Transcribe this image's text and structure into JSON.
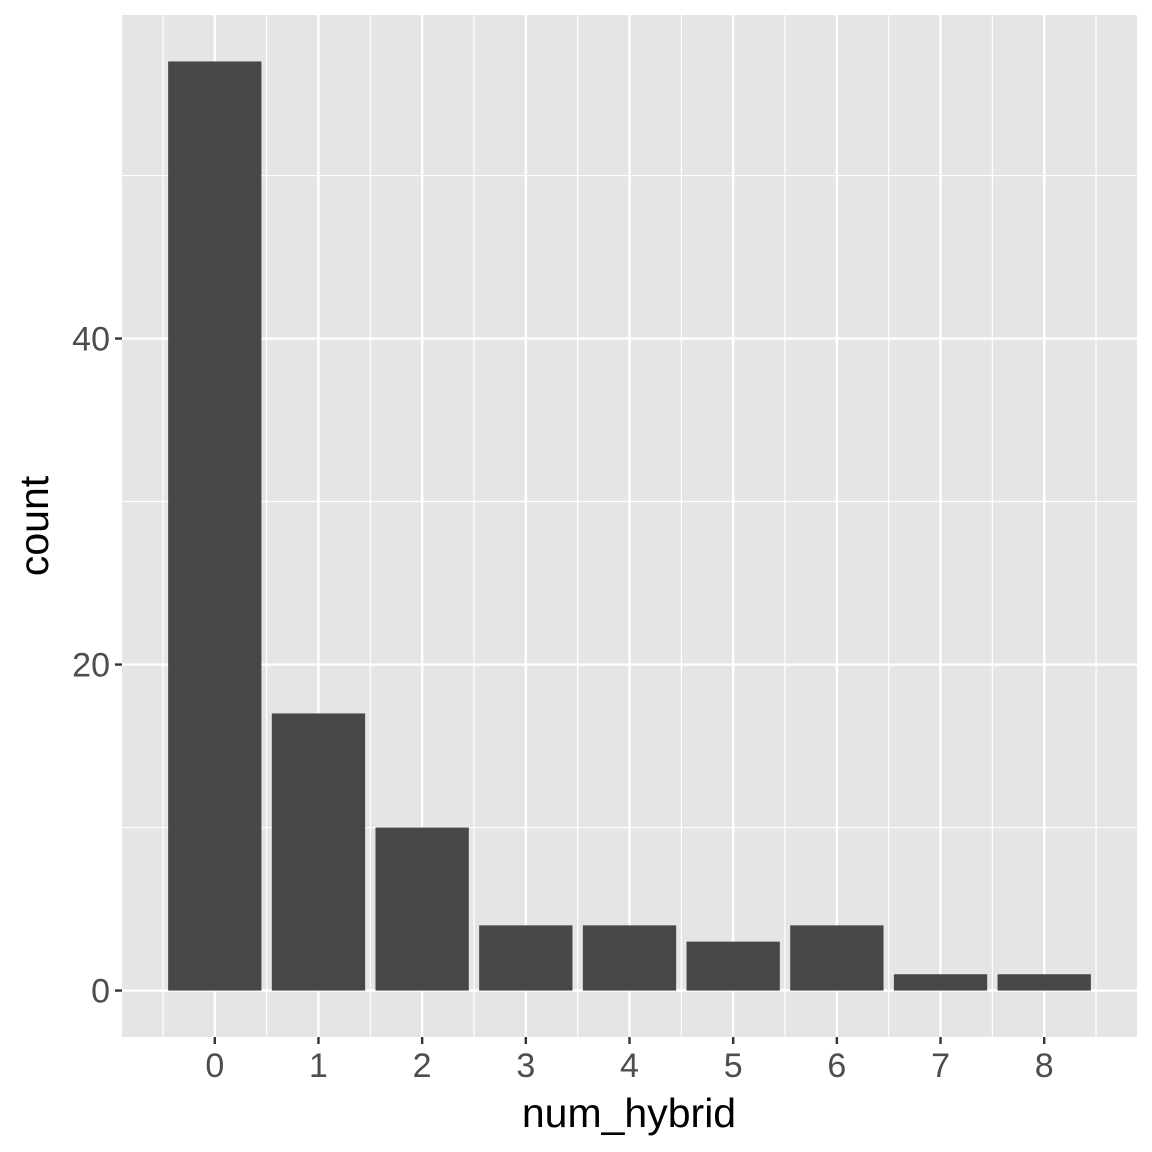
{
  "chart_data": {
    "type": "bar",
    "x_label": "num_hybrid",
    "y_label": "count",
    "x": [
      0,
      1,
      2,
      3,
      4,
      5,
      6,
      7,
      8
    ],
    "values": [
      57,
      17,
      10,
      4,
      4,
      3,
      4,
      1,
      1
    ],
    "color": "#474747",
    "bar_width": 0.9,
    "xlim": [
      -0.895,
      8.895
    ],
    "xticks": [
      0,
      1,
      2,
      3,
      4,
      5,
      6,
      7,
      8
    ],
    "x_minor_grid": [
      -0.5,
      0.5,
      1.5,
      2.5,
      3.5,
      4.5,
      5.5,
      6.5,
      7.5,
      8.5
    ],
    "ylim": [
      -2.85,
      59.85
    ],
    "yticks": [
      0,
      20,
      40
    ],
    "y_minor_grid": [
      10,
      30,
      50
    ],
    "grid": true,
    "panel_background": "#e5e5e5"
  }
}
